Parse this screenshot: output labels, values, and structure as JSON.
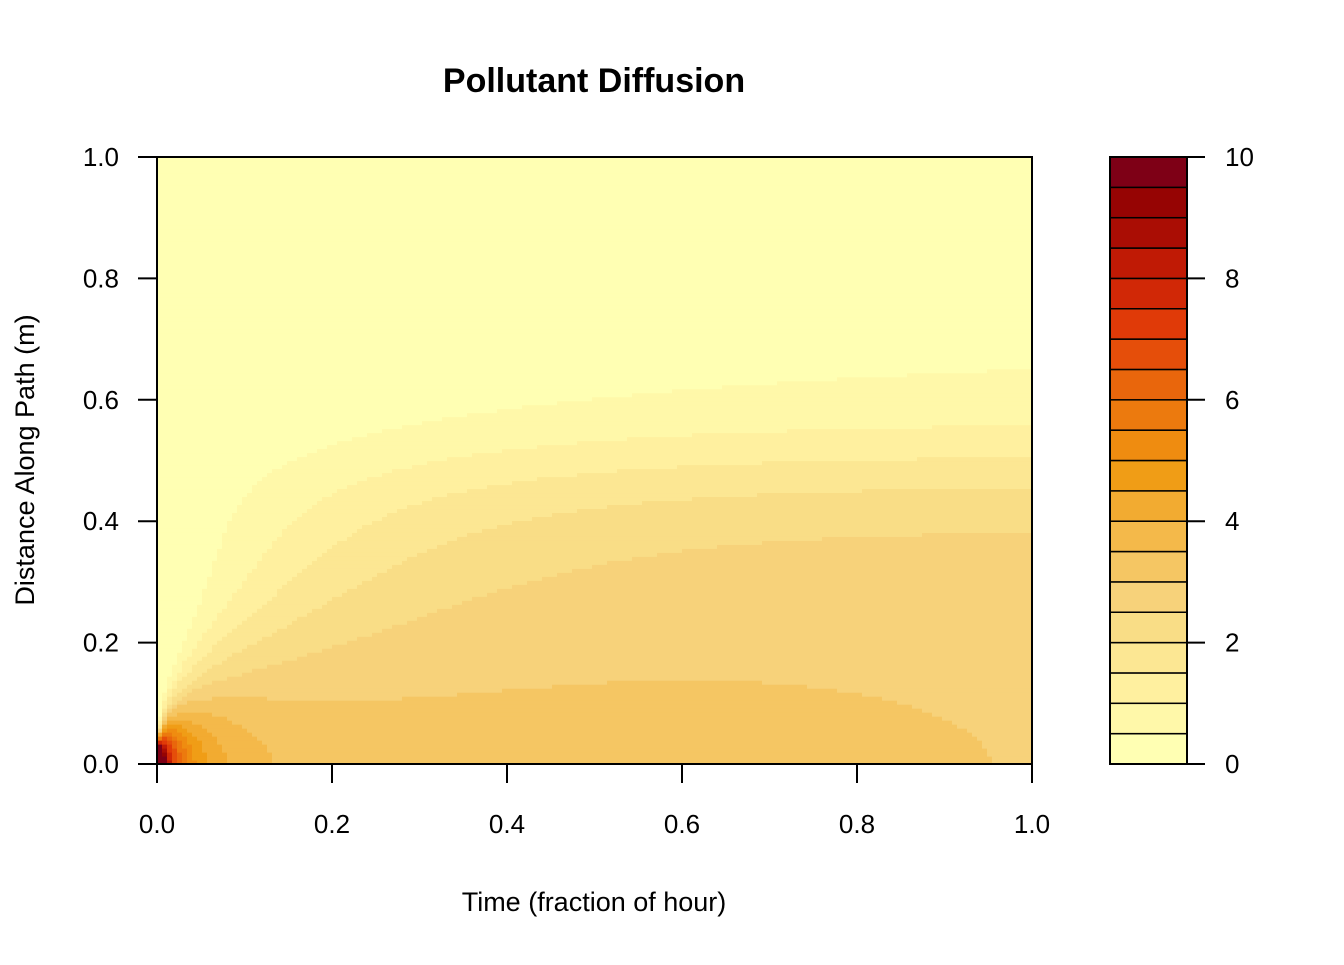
{
  "chart_data": {
    "type": "heatmap",
    "subtype": "filled-contour",
    "title": "Pollutant Diffusion",
    "xlabel": "Time (fraction of hour)",
    "ylabel": "Distance Along Path (m)",
    "xlim": [
      0,
      1
    ],
    "ylim": [
      0,
      1
    ],
    "x_ticks": [
      "0.0",
      "0.2",
      "0.4",
      "0.6",
      "0.8",
      "1.0"
    ],
    "y_ticks": [
      "0.0",
      "0.2",
      "0.4",
      "0.6",
      "0.8",
      "1.0"
    ],
    "colorbar": {
      "range": [
        0,
        10
      ],
      "ticks": [
        "0",
        "2",
        "4",
        "6",
        "8",
        "10"
      ],
      "levels": [
        0,
        0.5,
        1,
        1.5,
        2,
        2.5,
        3,
        3.5,
        4,
        4.5,
        5,
        5.5,
        6,
        6.5,
        7,
        7.5,
        8,
        8.5,
        9,
        9.5,
        10
      ],
      "colors": [
        "#FFFFB3",
        "#FFF8A9",
        "#FFF09F",
        "#FCE793",
        "#F9DD86",
        "#F7D27A",
        "#F5C663",
        "#F4B94A",
        "#F2AB31",
        "#F09D16",
        "#EF8C10",
        "#EC7A0E",
        "#E9660C",
        "#E54E0A",
        "#E03A08",
        "#D12806",
        "#C01A05",
        "#AA0D04",
        "#960403",
        "#7E0016",
        "#680020"
      ]
    },
    "model": "Gaussian diffusion from a pulse at distance 0, time 0, rising to an equilibrium of about 2 in the 0–0.5 m band",
    "legend": "colorbar-right",
    "grid": false
  }
}
